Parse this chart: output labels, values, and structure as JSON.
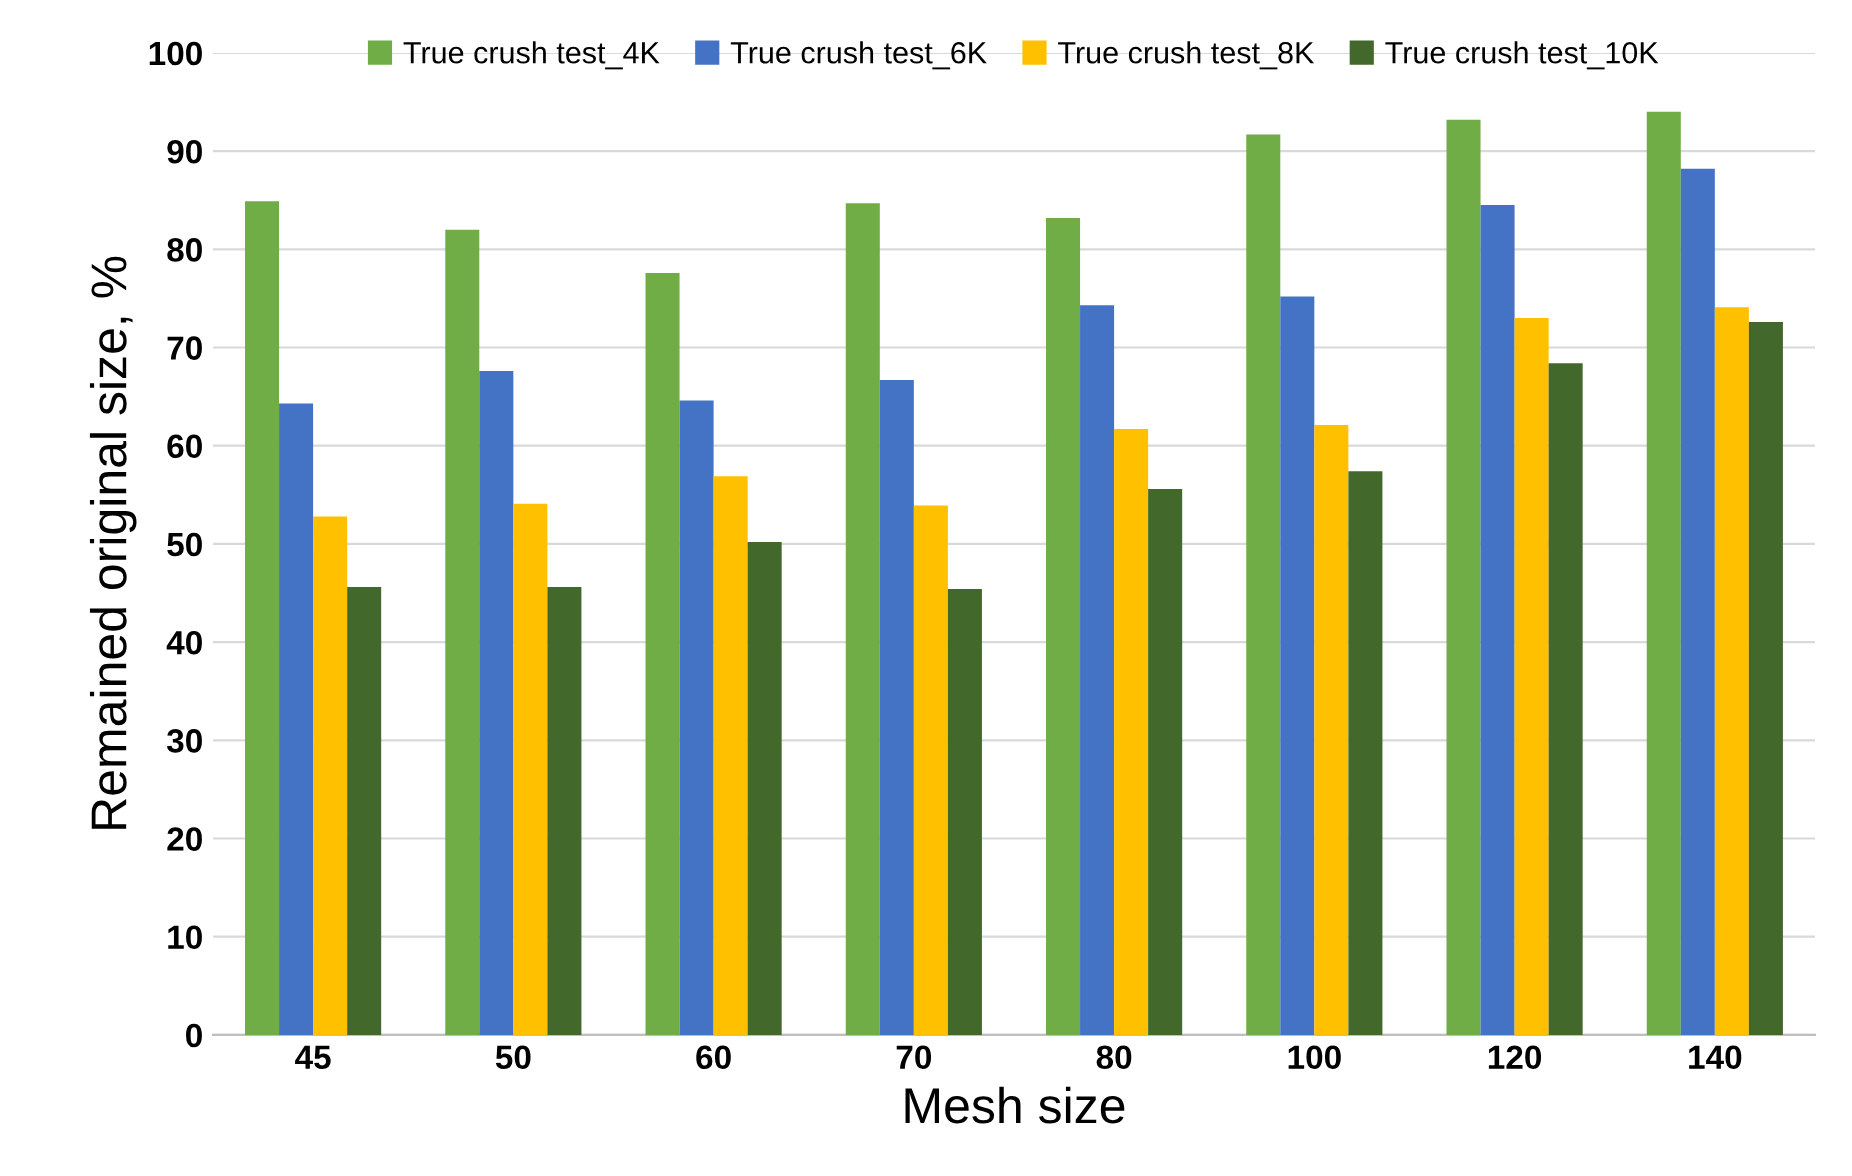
{
  "chart_data": {
    "type": "bar",
    "xlabel": "Mesh size",
    "ylabel": "Remained original size, %",
    "categories": [
      "45",
      "50",
      "60",
      "70",
      "80",
      "100",
      "120",
      "140"
    ],
    "series": [
      {
        "name": "True crush test_4K",
        "color": "#70ad47",
        "values": [
          84.9,
          82.0,
          77.6,
          84.7,
          83.2,
          91.7,
          93.2,
          94.0
        ]
      },
      {
        "name": "True crush test_6K",
        "color": "#4472c4",
        "values": [
          64.3,
          67.6,
          64.6,
          66.7,
          74.3,
          75.2,
          84.5,
          88.2
        ]
      },
      {
        "name": "True crush test_8K",
        "color": "#ffc000",
        "values": [
          52.8,
          54.1,
          56.9,
          53.9,
          61.7,
          62.1,
          73.0,
          74.1
        ]
      },
      {
        "name": "True crush test_10K",
        "color": "#43682b",
        "values": [
          45.6,
          45.6,
          50.2,
          45.4,
          55.6,
          57.4,
          68.4,
          72.6
        ]
      }
    ],
    "ylim": [
      0,
      100
    ],
    "yticks": [
      0,
      10,
      20,
      30,
      40,
      50,
      60,
      70,
      80,
      90,
      100
    ],
    "grid": "y",
    "legend": "top"
  }
}
